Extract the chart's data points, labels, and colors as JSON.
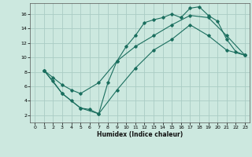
{
  "xlabel": "Humidex (Indice chaleur)",
  "bg_color": "#cce8df",
  "grid_color": "#aaccc4",
  "line_color": "#1a6e5e",
  "xlim": [
    -0.5,
    23.5
  ],
  "ylim": [
    1,
    17.5
  ],
  "xticks": [
    0,
    1,
    2,
    3,
    4,
    5,
    6,
    7,
    8,
    9,
    10,
    11,
    12,
    13,
    14,
    15,
    16,
    17,
    18,
    19,
    20,
    21,
    22,
    23
  ],
  "yticks": [
    2,
    4,
    6,
    8,
    10,
    12,
    14,
    16
  ],
  "line1_x": [
    1,
    2,
    3,
    4,
    5,
    6,
    7,
    8,
    9,
    10,
    11,
    12,
    13,
    14,
    15,
    16,
    17,
    18,
    19,
    20,
    21,
    22,
    23
  ],
  "line1_y": [
    8.2,
    6.7,
    5.0,
    4.0,
    3.0,
    2.8,
    2.2,
    6.5,
    9.5,
    11.5,
    13.0,
    14.8,
    15.2,
    15.5,
    16.0,
    15.5,
    16.8,
    17.0,
    15.8,
    15.0,
    12.5,
    10.8,
    10.3
  ],
  "line2_x": [
    1,
    2,
    3,
    4,
    5,
    7,
    9,
    11,
    13,
    15,
    17,
    19,
    21,
    23
  ],
  "line2_y": [
    8.2,
    7.2,
    6.2,
    5.5,
    5.0,
    6.5,
    9.5,
    11.5,
    13.0,
    14.5,
    15.8,
    15.5,
    13.0,
    10.3
  ],
  "line3_x": [
    1,
    3,
    5,
    7,
    9,
    11,
    13,
    15,
    17,
    19,
    21,
    23
  ],
  "line3_y": [
    8.2,
    5.0,
    3.0,
    2.2,
    5.5,
    8.5,
    11.0,
    12.5,
    14.5,
    13.0,
    11.0,
    10.3
  ]
}
